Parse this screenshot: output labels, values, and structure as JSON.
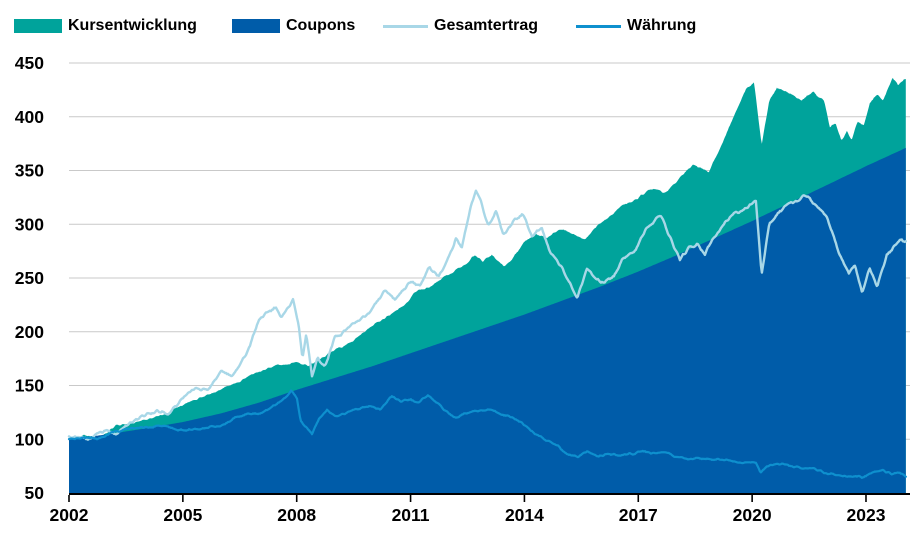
{
  "legend": {
    "items": [
      {
        "key": "kursentwicklung",
        "label": "Kursentwicklung",
        "type": "area",
        "color": "#00a39b"
      },
      {
        "key": "coupons",
        "label": "Coupons",
        "type": "area",
        "color": "#005ca9"
      },
      {
        "key": "gesamtertrag",
        "label": "Gesamtertrag",
        "type": "line",
        "color": "#a8d7e7"
      },
      {
        "key": "waehrung",
        "label": "Währung",
        "type": "line",
        "color": "#0e90ce"
      }
    ]
  },
  "chart_data": {
    "type": "combo: stacked area + line",
    "title": "",
    "note": "Index chart (start = 100). Kursentwicklung (teal) is stacked on top of Coupons (dark blue); its points below are the cumulative stack top (Coupons + Kursentwicklung). Gesamtertrag and Währung are overlay index lines.",
    "grid_color": "#c9c9c9",
    "axis_color": "#000000",
    "x_axis": {
      "range": [
        2002,
        2024.1
      ],
      "ticks": [
        2002,
        2005,
        2008,
        2011,
        2014,
        2017,
        2020,
        2023
      ],
      "grid": false
    },
    "y_axis": {
      "range": [
        50,
        450
      ],
      "ticks": [
        50,
        100,
        150,
        200,
        250,
        300,
        350,
        400,
        450
      ],
      "grid": true
    },
    "legend_position": "top",
    "series": [
      {
        "key": "kursentwicklung",
        "name": "Kursentwicklung",
        "role": "area-stacked-top",
        "color": "#00a39b",
        "jitter": 1.8,
        "points": [
          [
            2002.0,
            101
          ],
          [
            2002.4,
            104
          ],
          [
            2002.8,
            103
          ],
          [
            2003.2,
            111
          ],
          [
            2003.6,
            114
          ],
          [
            2004.0,
            119
          ],
          [
            2004.5,
            124
          ],
          [
            2005.0,
            131
          ],
          [
            2005.5,
            138
          ],
          [
            2006.0,
            147
          ],
          [
            2006.5,
            154
          ],
          [
            2007.0,
            164
          ],
          [
            2007.5,
            170
          ],
          [
            2008.0,
            172
          ],
          [
            2008.3,
            167
          ],
          [
            2008.6,
            173
          ],
          [
            2009.0,
            182
          ],
          [
            2009.4,
            190
          ],
          [
            2009.8,
            200
          ],
          [
            2010.1,
            207
          ],
          [
            2010.4,
            214
          ],
          [
            2010.7,
            222
          ],
          [
            2010.9,
            228
          ],
          [
            2011.1,
            236
          ],
          [
            2011.35,
            239
          ],
          [
            2011.6,
            243
          ],
          [
            2011.9,
            250
          ],
          [
            2012.2,
            258
          ],
          [
            2012.45,
            263
          ],
          [
            2012.7,
            271
          ],
          [
            2012.9,
            265
          ],
          [
            2013.15,
            271
          ],
          [
            2013.45,
            262
          ],
          [
            2013.65,
            268
          ],
          [
            2013.85,
            277
          ],
          [
            2014.0,
            285
          ],
          [
            2014.3,
            291
          ],
          [
            2014.6,
            288
          ],
          [
            2015.0,
            296
          ],
          [
            2015.3,
            292
          ],
          [
            2015.6,
            286
          ],
          [
            2015.9,
            298
          ],
          [
            2016.3,
            310
          ],
          [
            2016.6,
            318
          ],
          [
            2016.9,
            323
          ],
          [
            2017.15,
            329
          ],
          [
            2017.35,
            333
          ],
          [
            2017.7,
            329
          ],
          [
            2018.0,
            340
          ],
          [
            2018.45,
            357
          ],
          [
            2018.65,
            352
          ],
          [
            2018.85,
            348
          ],
          [
            2019.1,
            368
          ],
          [
            2019.3,
            382
          ],
          [
            2019.5,
            399
          ],
          [
            2019.85,
            426
          ],
          [
            2020.05,
            432
          ],
          [
            2020.25,
            374
          ],
          [
            2020.45,
            415
          ],
          [
            2020.65,
            428
          ],
          [
            2020.9,
            424
          ],
          [
            2021.1,
            420
          ],
          [
            2021.3,
            414
          ],
          [
            2021.6,
            422
          ],
          [
            2021.9,
            414
          ],
          [
            2022.05,
            390
          ],
          [
            2022.2,
            394
          ],
          [
            2022.35,
            377
          ],
          [
            2022.5,
            386
          ],
          [
            2022.62,
            378
          ],
          [
            2022.78,
            396
          ],
          [
            2022.95,
            392
          ],
          [
            2023.1,
            413
          ],
          [
            2023.3,
            422
          ],
          [
            2023.45,
            415
          ],
          [
            2023.7,
            437
          ],
          [
            2023.85,
            429
          ],
          [
            2024.05,
            435
          ]
        ]
      },
      {
        "key": "coupons",
        "name": "Coupons",
        "role": "area",
        "color": "#005ca9",
        "jitter": 0,
        "points": [
          [
            2002.0,
            100
          ],
          [
            2003.0,
            104.5
          ],
          [
            2004.0,
            110
          ],
          [
            2005.0,
            116
          ],
          [
            2006.0,
            124
          ],
          [
            2007.0,
            134
          ],
          [
            2008.0,
            146
          ],
          [
            2009.0,
            157
          ],
          [
            2010.0,
            168
          ],
          [
            2011.0,
            180
          ],
          [
            2012.0,
            192
          ],
          [
            2013.0,
            204
          ],
          [
            2014.0,
            216
          ],
          [
            2015.0,
            229
          ],
          [
            2016.0,
            242
          ],
          [
            2017.0,
            256
          ],
          [
            2018.0,
            271
          ],
          [
            2019.0,
            287
          ],
          [
            2020.0,
            303
          ],
          [
            2021.0,
            320
          ],
          [
            2022.0,
            337
          ],
          [
            2023.0,
            354
          ],
          [
            2024.05,
            371
          ]
        ]
      },
      {
        "key": "gesamtertrag",
        "name": "Gesamtertrag",
        "role": "line",
        "color": "#a8d7e7",
        "width": 2.4,
        "jitter": 2.6,
        "points": [
          [
            2002.0,
            100
          ],
          [
            2002.25,
            103
          ],
          [
            2002.5,
            100
          ],
          [
            2002.75,
            104
          ],
          [
            2003.0,
            107
          ],
          [
            2003.2,
            104
          ],
          [
            2003.5,
            111
          ],
          [
            2003.75,
            116
          ],
          [
            2004.0,
            122
          ],
          [
            2004.3,
            128
          ],
          [
            2004.6,
            126
          ],
          [
            2005.0,
            140
          ],
          [
            2005.35,
            148
          ],
          [
            2005.65,
            146
          ],
          [
            2006.0,
            164
          ],
          [
            2006.3,
            160
          ],
          [
            2006.7,
            181
          ],
          [
            2007.0,
            210
          ],
          [
            2007.2,
            218
          ],
          [
            2007.45,
            223
          ],
          [
            2007.6,
            212
          ],
          [
            2007.9,
            228
          ],
          [
            2008.05,
            205
          ],
          [
            2008.15,
            174
          ],
          [
            2008.25,
            195
          ],
          [
            2008.4,
            158
          ],
          [
            2008.55,
            176
          ],
          [
            2008.75,
            168
          ],
          [
            2009.0,
            193
          ],
          [
            2009.3,
            203
          ],
          [
            2009.6,
            211
          ],
          [
            2010.0,
            222
          ],
          [
            2010.35,
            238
          ],
          [
            2010.6,
            230
          ],
          [
            2011.0,
            248
          ],
          [
            2011.25,
            243
          ],
          [
            2011.5,
            262
          ],
          [
            2011.75,
            253
          ],
          [
            2012.0,
            271
          ],
          [
            2012.2,
            288
          ],
          [
            2012.35,
            277
          ],
          [
            2012.6,
            318
          ],
          [
            2012.72,
            330
          ],
          [
            2012.85,
            321
          ],
          [
            2013.05,
            298
          ],
          [
            2013.25,
            313
          ],
          [
            2013.45,
            291
          ],
          [
            2013.7,
            305
          ],
          [
            2013.95,
            310
          ],
          [
            2014.2,
            288
          ],
          [
            2014.45,
            296
          ],
          [
            2014.7,
            273
          ],
          [
            2015.0,
            257
          ],
          [
            2015.2,
            244
          ],
          [
            2015.4,
            232
          ],
          [
            2015.65,
            261
          ],
          [
            2015.9,
            249
          ],
          [
            2016.1,
            246
          ],
          [
            2016.35,
            251
          ],
          [
            2016.6,
            269
          ],
          [
            2016.9,
            275
          ],
          [
            2017.2,
            294
          ],
          [
            2017.6,
            308
          ],
          [
            2017.9,
            284
          ],
          [
            2018.1,
            267
          ],
          [
            2018.35,
            280
          ],
          [
            2018.55,
            283
          ],
          [
            2018.75,
            270
          ],
          [
            2019.0,
            289
          ],
          [
            2019.3,
            304
          ],
          [
            2019.6,
            312
          ],
          [
            2019.9,
            316
          ],
          [
            2020.1,
            320
          ],
          [
            2020.25,
            252
          ],
          [
            2020.45,
            299
          ],
          [
            2020.7,
            311
          ],
          [
            2020.95,
            319
          ],
          [
            2021.2,
            323
          ],
          [
            2021.45,
            327
          ],
          [
            2021.7,
            317
          ],
          [
            2021.95,
            309
          ],
          [
            2022.15,
            290
          ],
          [
            2022.35,
            269
          ],
          [
            2022.55,
            254
          ],
          [
            2022.7,
            262
          ],
          [
            2022.9,
            236
          ],
          [
            2023.1,
            259
          ],
          [
            2023.3,
            242
          ],
          [
            2023.55,
            271
          ],
          [
            2023.75,
            280
          ],
          [
            2023.9,
            286
          ],
          [
            2024.05,
            282
          ]
        ]
      },
      {
        "key": "waehrung",
        "name": "Währung",
        "role": "line",
        "color": "#0e90ce",
        "width": 2.2,
        "jitter": 1.6,
        "points": [
          [
            2002.0,
            100
          ],
          [
            2002.4,
            103
          ],
          [
            2002.8,
            101
          ],
          [
            2003.2,
            107
          ],
          [
            2003.6,
            110
          ],
          [
            2004.0,
            112
          ],
          [
            2004.4,
            113
          ],
          [
            2004.8,
            110
          ],
          [
            2005.1,
            107
          ],
          [
            2005.5,
            110
          ],
          [
            2005.9,
            112
          ],
          [
            2006.3,
            118
          ],
          [
            2006.7,
            122
          ],
          [
            2007.0,
            124
          ],
          [
            2007.3,
            129
          ],
          [
            2007.6,
            136
          ],
          [
            2007.85,
            145
          ],
          [
            2008.0,
            139
          ],
          [
            2008.1,
            117
          ],
          [
            2008.25,
            110
          ],
          [
            2008.4,
            104
          ],
          [
            2008.6,
            120
          ],
          [
            2008.8,
            127
          ],
          [
            2009.0,
            121
          ],
          [
            2009.3,
            125
          ],
          [
            2009.6,
            129
          ],
          [
            2009.9,
            132
          ],
          [
            2010.2,
            128
          ],
          [
            2010.5,
            140
          ],
          [
            2010.75,
            134
          ],
          [
            2011.0,
            137
          ],
          [
            2011.2,
            134
          ],
          [
            2011.45,
            142
          ],
          [
            2011.7,
            133
          ],
          [
            2011.9,
            127
          ],
          [
            2012.2,
            120
          ],
          [
            2012.5,
            124
          ],
          [
            2012.8,
            126
          ],
          [
            2013.1,
            127
          ],
          [
            2013.4,
            122
          ],
          [
            2013.7,
            119
          ],
          [
            2013.95,
            115
          ],
          [
            2014.3,
            105
          ],
          [
            2014.6,
            98
          ],
          [
            2014.9,
            94
          ],
          [
            2015.1,
            86
          ],
          [
            2015.4,
            83
          ],
          [
            2015.65,
            88
          ],
          [
            2015.9,
            84
          ],
          [
            2016.2,
            86
          ],
          [
            2016.5,
            84
          ],
          [
            2016.8,
            86
          ],
          [
            2017.1,
            88
          ],
          [
            2017.4,
            87
          ],
          [
            2017.7,
            89
          ],
          [
            2018.0,
            84
          ],
          [
            2018.3,
            82
          ],
          [
            2018.6,
            83
          ],
          [
            2018.9,
            81
          ],
          [
            2019.2,
            80
          ],
          [
            2019.5,
            79
          ],
          [
            2019.8,
            78
          ],
          [
            2020.1,
            77
          ],
          [
            2020.22,
            68
          ],
          [
            2020.4,
            74
          ],
          [
            2020.6,
            76
          ],
          [
            2020.9,
            77
          ],
          [
            2021.2,
            75
          ],
          [
            2021.5,
            73
          ],
          [
            2021.8,
            71
          ],
          [
            2022.1,
            69
          ],
          [
            2022.4,
            67
          ],
          [
            2022.7,
            66
          ],
          [
            2022.95,
            64
          ],
          [
            2023.2,
            68
          ],
          [
            2023.45,
            70
          ],
          [
            2023.7,
            67
          ],
          [
            2023.9,
            68
          ],
          [
            2024.05,
            66
          ]
        ]
      }
    ]
  }
}
